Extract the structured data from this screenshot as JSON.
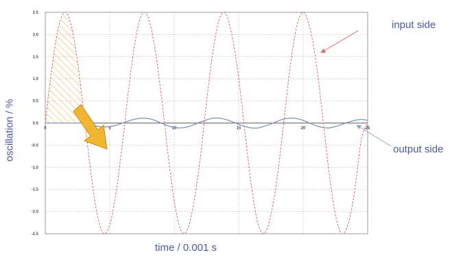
{
  "chart_data": {
    "type": "line",
    "title": "",
    "xlabel": "time / 0.001 s",
    "ylabel": "oscillation / %",
    "xlim": [
      0,
      25
    ],
    "ylim": [
      -2.5,
      2.5
    ],
    "x_ticks": [
      0,
      5,
      10,
      15,
      20,
      25
    ],
    "x_tick_labels": [
      "0",
      "5",
      "10",
      "15",
      "20",
      "25"
    ],
    "y_ticks": [
      2.5,
      2.0,
      1.5,
      1.0,
      0.5,
      0.0,
      -0.5,
      -1.0,
      -1.5,
      -2.0,
      -2.5
    ],
    "y_tick_labels": [
      "2.5",
      "2.0",
      "1.5",
      "1.0",
      "0.5",
      "0.0",
      "-0.5",
      "-1.0",
      "-1.5",
      "-2.0",
      "-2.5"
    ],
    "grid": true,
    "series": [
      {
        "name": "input side",
        "color": "#e06868",
        "style": "dashed",
        "x": [
          0,
          0.5,
          1,
          1.5,
          2,
          2.5,
          3,
          3.5,
          4,
          4.5,
          5,
          5.5,
          6,
          6.5,
          7,
          7.5,
          8,
          8.5,
          9,
          9.5,
          10,
          10.5,
          11,
          11.5,
          12,
          12.5,
          13,
          13.5,
          14,
          14.5,
          15,
          15.5,
          16,
          16.5,
          17,
          17.5,
          18,
          18.5,
          19,
          19.5,
          20,
          20.5,
          21,
          21.5,
          22,
          22.5,
          23,
          23.5,
          24,
          24.5,
          25
        ],
        "y": [
          0.0,
          1.22,
          2.13,
          2.5,
          2.22,
          1.39,
          0.21,
          -1.04,
          -2.02,
          -2.49,
          -2.3,
          -1.55,
          -0.42,
          0.85,
          1.9,
          2.46,
          2.37,
          1.69,
          0.62,
          -0.65,
          -1.76,
          -2.41,
          -2.42,
          -1.83,
          -0.83,
          0.45,
          1.61,
          2.35,
          2.47,
          1.95,
          1.02,
          -0.24,
          -1.45,
          -2.27,
          -2.49,
          -2.07,
          -1.2,
          0.03,
          1.28,
          2.18,
          2.5,
          2.17,
          1.37,
          0.18,
          -1.1,
          -2.07,
          -2.5,
          -2.26,
          -1.52,
          -0.39,
          0.0
        ]
      },
      {
        "name": "output side",
        "color": "#8090b8",
        "style": "solid",
        "x": [
          0,
          0.5,
          1,
          1.5,
          2,
          2.5,
          3,
          3.5,
          4,
          4.5,
          5,
          5.5,
          6,
          6.5,
          7,
          7.5,
          8,
          8.5,
          9,
          9.5,
          10,
          10.5,
          11,
          11.5,
          12,
          12.5,
          13,
          13.5,
          14,
          14.5,
          15,
          15.5,
          16,
          16.5,
          17,
          17.5,
          18,
          18.5,
          19,
          19.5,
          20,
          20.5,
          21,
          21.5,
          22,
          22.5,
          23,
          23.5,
          24,
          24.5,
          25
        ],
        "y": [
          0.0,
          0.0,
          0.0,
          0.0,
          0.0,
          0.0,
          0.0,
          -0.03,
          -0.07,
          -0.09,
          -0.08,
          -0.05,
          0.0,
          0.05,
          0.09,
          0.11,
          0.1,
          0.06,
          0.0,
          -0.06,
          -0.1,
          -0.11,
          -0.09,
          -0.04,
          0.02,
          0.07,
          0.11,
          0.11,
          0.08,
          0.03,
          -0.03,
          -0.08,
          -0.11,
          -0.11,
          -0.07,
          -0.02,
          0.04,
          0.09,
          0.11,
          0.1,
          0.06,
          0.0,
          -0.06,
          -0.1,
          -0.11,
          -0.08,
          -0.03,
          0.02,
          0.06,
          0.08,
          0.06
        ]
      }
    ],
    "annotations": [
      {
        "text": "input side",
        "color": "#4a5aa8",
        "arrow_color": "#e06868"
      },
      {
        "text": "output side",
        "color": "#4a5aa8",
        "arrow_color": "#8fa3cc"
      }
    ],
    "highlight": {
      "hatched_region": {
        "x": [
          0,
          3
        ],
        "color": "#f0c070"
      },
      "arrow_color": "#f0b020"
    }
  }
}
